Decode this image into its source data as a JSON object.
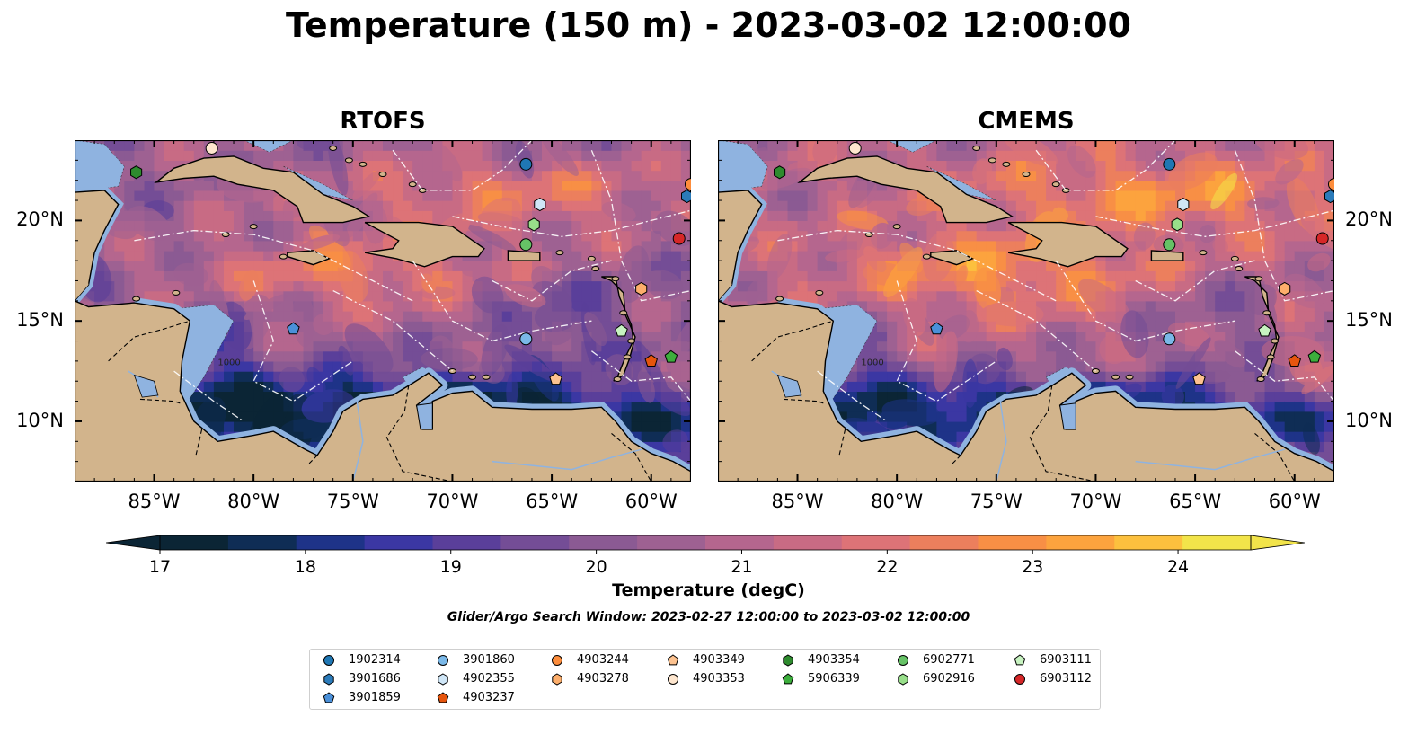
{
  "title": "Temperature (150 m) - 2023-03-02 12:00:00",
  "panels": [
    {
      "key": "rtofs",
      "title": "RTOFS",
      "warm_bias": 0
    },
    {
      "key": "cmems",
      "title": "CMEMS",
      "warm_bias": 0.6
    }
  ],
  "map_extent": {
    "lon": [
      -89,
      -58
    ],
    "lat": [
      7,
      24
    ]
  },
  "lon_ticks": [
    {
      "value": -85,
      "label": "85°W"
    },
    {
      "value": -80,
      "label": "80°W"
    },
    {
      "value": -75,
      "label": "75°W"
    },
    {
      "value": -70,
      "label": "70°W"
    },
    {
      "value": -65,
      "label": "65°W"
    },
    {
      "value": -60,
      "label": "60°W"
    }
  ],
  "lat_ticks": [
    {
      "value": 20,
      "label": "20°N"
    },
    {
      "value": 15,
      "label": "15°N"
    },
    {
      "value": 10,
      "label": "10°N"
    }
  ],
  "colorbar": {
    "label": "Temperature (degC)",
    "range": [
      17,
      24.5
    ],
    "ticks": [
      17,
      18,
      19,
      20,
      21,
      22,
      23,
      24
    ],
    "extend": "both",
    "colors": [
      "#0b2535",
      "#0f2d55",
      "#1e3388",
      "#3b37a3",
      "#5a3f9a",
      "#744d96",
      "#8b5a93",
      "#9e6192",
      "#b5668e",
      "#c86b84",
      "#dd7377",
      "#ec7f5d",
      "#f88f45",
      "#fca33e",
      "#fcc03e",
      "#f2e44a"
    ]
  },
  "search_window": "Glider/Argo Search Window: 2023-02-27 12:00:00 to 2023-03-02 12:00:00",
  "colors": {
    "land": "#d2b48c",
    "shelf": "#8fb3e0",
    "deep": "#081d2d"
  },
  "floats": [
    {
      "id": "1902314",
      "marker": "circle",
      "color": "#1f77b4",
      "lon": -66.3,
      "lat": 22.8
    },
    {
      "id": "3901686",
      "marker": "hexagon",
      "color": "#2b7bba",
      "lon": -58.2,
      "lat": 21.2
    },
    {
      "id": "3901859",
      "marker": "pentagon",
      "color": "#4a90d9",
      "lon": -78.0,
      "lat": 14.6
    },
    {
      "id": "3901860",
      "marker": "circle",
      "color": "#7ab8e8",
      "lon": -66.3,
      "lat": 14.1
    },
    {
      "id": "4902355",
      "marker": "hexagon",
      "color": "#cfe6f7",
      "lon": -65.6,
      "lat": 20.8
    },
    {
      "id": "4903237",
      "marker": "pentagon",
      "color": "#e6550d",
      "lon": -60.0,
      "lat": 13.0
    },
    {
      "id": "4903244",
      "marker": "circle",
      "color": "#fd8d3c",
      "lon": -58.0,
      "lat": 21.8
    },
    {
      "id": "4903278",
      "marker": "hexagon",
      "color": "#fdae6b",
      "lon": -60.5,
      "lat": 16.6
    },
    {
      "id": "4903349",
      "marker": "pentagon",
      "color": "#fdc28f",
      "lon": -64.8,
      "lat": 12.1
    },
    {
      "id": "4903353",
      "marker": "circle",
      "color": "#fee6ce",
      "lon": -82.1,
      "lat": 23.6
    },
    {
      "id": "4903354",
      "marker": "hexagon",
      "color": "#2e8b2e",
      "lon": -85.9,
      "lat": 22.4
    },
    {
      "id": "5906339",
      "marker": "pentagon",
      "color": "#3cae3c",
      "lon": -59.0,
      "lat": 13.2
    },
    {
      "id": "6902771",
      "marker": "circle",
      "color": "#66c266",
      "lon": -66.3,
      "lat": 18.8
    },
    {
      "id": "6902916",
      "marker": "hexagon",
      "color": "#98df8a",
      "lon": -65.9,
      "lat": 19.8
    },
    {
      "id": "6903111",
      "marker": "pentagon",
      "color": "#c7f2c0",
      "lon": -61.5,
      "lat": 14.5
    },
    {
      "id": "6903112",
      "marker": "circle",
      "color": "#d62728",
      "lon": -58.6,
      "lat": 19.1
    }
  ],
  "contour_label": "1000"
}
